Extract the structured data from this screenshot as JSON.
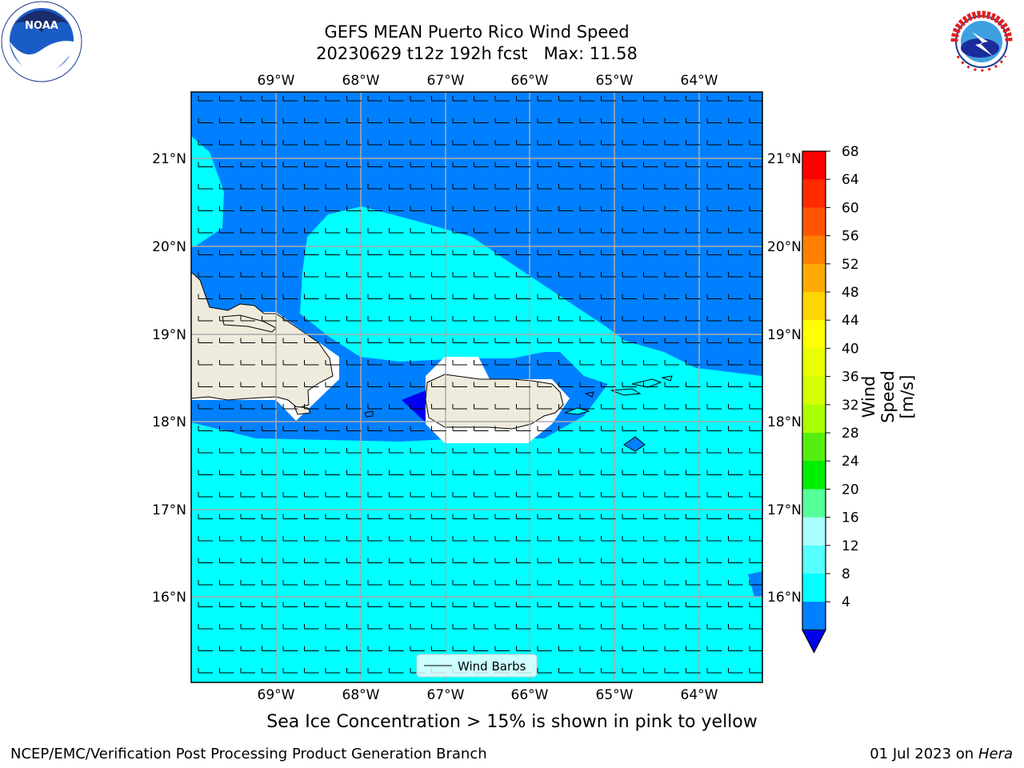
{
  "title": {
    "line1": "GEFS MEAN Puerto Rico Wind Speed",
    "line2": "20230629 t12z 192h fcst   Max: 11.58"
  },
  "logos": {
    "left": {
      "icon": "noaa-logo-icon",
      "text": "NOAA"
    },
    "right": {
      "icon": "nws-logo-icon",
      "text": "NATIONAL WEATHER SERVICE"
    }
  },
  "map": {
    "lon_labels": [
      "69°W",
      "68°W",
      "67°W",
      "66°W",
      "65°W",
      "64°W"
    ],
    "lat_labels": [
      "21°N",
      "20°N",
      "19°N",
      "18°N",
      "17°N",
      "16°N"
    ],
    "legend_label": "Wind Barbs"
  },
  "colorbar": {
    "label": "Wind Speed [m/s]",
    "ticks": [
      "68",
      "64",
      "60",
      "56",
      "52",
      "48",
      "44",
      "40",
      "36",
      "32",
      "28",
      "24",
      "20",
      "16",
      "12",
      "8",
      "4"
    ],
    "colors": [
      "#ff0000",
      "#ff2a00",
      "#ff5500",
      "#ff8000",
      "#ffaa00",
      "#ffd500",
      "#ffff00",
      "#eaff00",
      "#d5ff00",
      "#aaff00",
      "#55ee11",
      "#00ee00",
      "#55ff99",
      "#aaffff",
      "#55ffff",
      "#00ffff",
      "#0080ff"
    ],
    "under_color": "#0000ee"
  },
  "note": "Sea Ice Concentration > 15% is shown in pink to yellow",
  "footer": {
    "left": "NCEP/EMC/Verification Post Processing Product Generation Branch",
    "right_prefix": "01 Jul 2023 on ",
    "right_machine": "Hera"
  }
}
